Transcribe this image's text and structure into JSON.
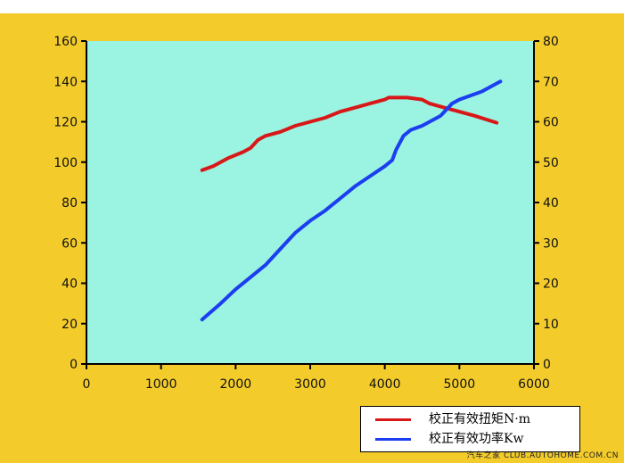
{
  "chart_data": {
    "type": "line",
    "title": "",
    "xlabel": "",
    "ylabel": "",
    "y2label": "",
    "xlim": [
      0,
      6000
    ],
    "ylim": [
      0,
      160
    ],
    "y2lim": [
      0,
      80
    ],
    "xticks": [
      "0",
      "1000",
      "2000",
      "3000",
      "4000",
      "5000",
      "6000"
    ],
    "yticks": [
      "0",
      "20",
      "40",
      "60",
      "80",
      "100",
      "120",
      "140",
      "160"
    ],
    "y2ticks": [
      "0",
      "10",
      "20",
      "30",
      "40",
      "50",
      "60",
      "70",
      "80"
    ],
    "grid": false,
    "plot_background": "#9bf3e1",
    "page_background": "#f3cc2c",
    "series": [
      {
        "name": "校正有效扭矩N·m",
        "axis": "left",
        "color": "#d81818",
        "x": [
          1550,
          1700,
          1900,
          2100,
          2200,
          2300,
          2400,
          2600,
          2800,
          3000,
          3200,
          3400,
          3600,
          3800,
          4000,
          4050,
          4200,
          4300,
          4400,
          4500,
          4600,
          4800,
          5000,
          5200,
          5500
        ],
        "y": [
          96,
          98,
          102,
          105,
          107,
          111,
          113,
          115,
          118,
          120,
          122,
          125,
          127,
          129,
          131,
          132,
          132,
          132,
          131.5,
          131,
          129,
          127,
          125,
          123,
          119.5
        ]
      },
      {
        "name": "校正有效功率Kw",
        "axis": "right",
        "color": "#1b3ef0",
        "x": [
          1550,
          1800,
          2000,
          2200,
          2400,
          2600,
          2800,
          3000,
          3200,
          3400,
          3600,
          3800,
          4000,
          4100,
          4150,
          4250,
          4350,
          4500,
          4600,
          4750,
          4900,
          5000,
          5150,
          5300,
          5550
        ],
        "y": [
          11,
          15,
          18.5,
          21.5,
          24.5,
          28.5,
          32.5,
          35.5,
          38,
          41,
          44,
          46.5,
          49,
          50.5,
          53,
          56.5,
          58,
          59,
          60,
          61.5,
          64.5,
          65.5,
          66.5,
          67.5,
          70
        ]
      }
    ],
    "legend_position": "bottom-right"
  },
  "watermark": "汽车之家 CLUB.AUTOHOME.COM.CN"
}
